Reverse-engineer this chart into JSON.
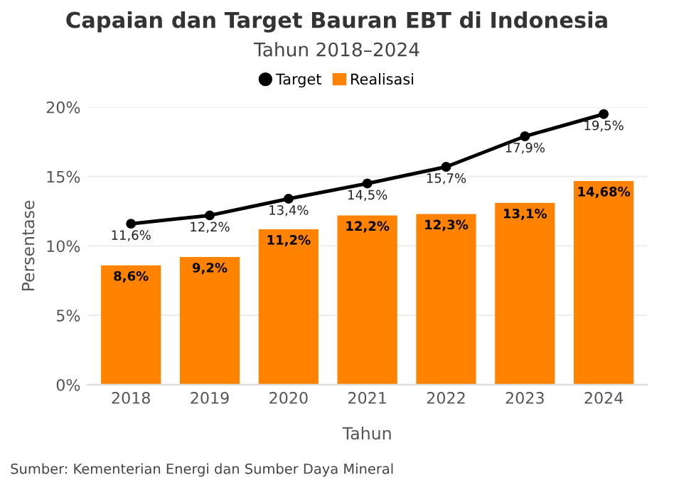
{
  "chart_data": {
    "type": "bar",
    "title": "Capaian dan Target Bauran EBT di Indonesia",
    "subtitle": "Tahun 2018–2024",
    "xlabel": "Tahun",
    "ylabel": "Persentase",
    "categories": [
      "2018",
      "2019",
      "2020",
      "2021",
      "2022",
      "2023",
      "2024"
    ],
    "series": [
      {
        "name": "Target",
        "type": "line",
        "color": "#000000",
        "marker": "circle",
        "values": [
          11.6,
          12.2,
          13.4,
          14.5,
          15.7,
          17.9,
          19.5
        ],
        "value_labels": [
          "11,6%",
          "12,2%",
          "13,4%",
          "14,5%",
          "15,7%",
          "17,9%",
          "19,5%"
        ]
      },
      {
        "name": "Realisasi",
        "color": "#ff8300",
        "values": [
          8.6,
          9.2,
          11.2,
          12.2,
          12.3,
          13.1,
          14.68
        ],
        "value_labels": [
          "8,6%",
          "9,2%",
          "11,2%",
          "12,2%",
          "12,3%",
          "13,1%",
          "14,68%"
        ]
      }
    ],
    "ylim": [
      0,
      20
    ],
    "yticks": [
      {
        "value": 0,
        "label": "0%"
      },
      {
        "value": 5,
        "label": "5%"
      },
      {
        "value": 10,
        "label": "10%"
      },
      {
        "value": 15,
        "label": "15%"
      },
      {
        "value": 20,
        "label": "20%"
      }
    ],
    "grid": "y",
    "legend": "top",
    "annotations": [
      "Sumber: Kementerian Energi dan Sumber Daya Mineral"
    ]
  }
}
